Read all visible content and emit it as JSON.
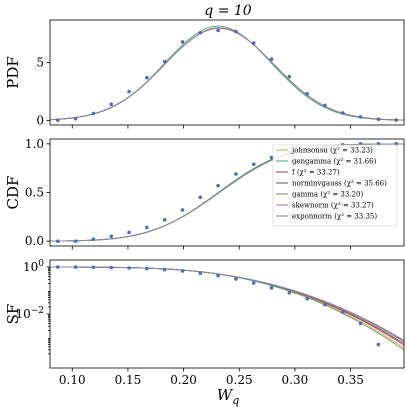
{
  "chart_data": {
    "type": "line",
    "title": "q = 10",
    "xlabel": "W_q",
    "x_ticks": [
      "0.10",
      "0.15",
      "0.20",
      "0.25",
      "0.30",
      "0.35"
    ],
    "x_tick_values": [
      0.1,
      0.15,
      0.2,
      0.25,
      0.3,
      0.35
    ],
    "xlim": [
      0.08,
      0.398
    ],
    "x": [
      0.087,
      0.103,
      0.119,
      0.135,
      0.151,
      0.167,
      0.183,
      0.199,
      0.215,
      0.231,
      0.247,
      0.263,
      0.279,
      0.295,
      0.311,
      0.327,
      0.343,
      0.359,
      0.375,
      0.391
    ],
    "panels": [
      {
        "name": "pdf",
        "ylabel": "PDF",
        "ylim": [
          -0.4,
          8.7
        ],
        "y_ticks": [
          "0",
          "5"
        ],
        "y_tick_values": [
          0,
          5
        ],
        "log": false,
        "points": [
          0.02,
          0.15,
          0.6,
          1.4,
          2.5,
          3.7,
          5.1,
          6.8,
          7.6,
          7.8,
          7.7,
          6.7,
          5.3,
          3.8,
          2.3,
          1.3,
          0.65,
          0.3,
          0.1,
          0.03
        ],
        "series": [
          {
            "name": "johnsonsu",
            "color": "#e6a34f",
            "mu": 0.232,
            "sigma": 0.049
          },
          {
            "name": "gengamma",
            "color": "#5aa86b",
            "mu": 0.231,
            "sigma": 0.048
          },
          {
            "name": "f",
            "color": "#c0405a",
            "mu": 0.232,
            "sigma": 0.049
          },
          {
            "name": "norminvgauss",
            "color": "#6a6a6a",
            "mu": 0.232,
            "sigma": 0.049
          },
          {
            "name": "gamma",
            "color": "#a9844a",
            "mu": 0.232,
            "sigma": 0.0492
          },
          {
            "name": "skewnorm",
            "color": "#c46bd1",
            "mu": 0.232,
            "sigma": 0.049
          },
          {
            "name": "exponnorm",
            "color": "#7b8ea0",
            "mu": 0.232,
            "sigma": 0.0488
          }
        ]
      },
      {
        "name": "cdf",
        "ylabel": "CDF",
        "ylim": [
          -0.05,
          1.05
        ],
        "y_ticks": [
          "0.0",
          "0.5",
          "1.0"
        ],
        "y_tick_values": [
          0.0,
          0.5,
          1.0
        ],
        "log": false,
        "points": [
          0.0,
          0.0,
          0.02,
          0.05,
          0.09,
          0.14,
          0.22,
          0.32,
          0.45,
          0.57,
          0.69,
          0.79,
          0.86,
          0.91,
          0.95,
          0.97,
          0.99,
          1.0,
          1.0,
          1.0
        ],
        "legend": [
          {
            "label": "johnsonsu (χ² = 33.23)",
            "color": "#e6a34f"
          },
          {
            "label": "gengamma (χ² = 31.66)",
            "color": "#5aa86b"
          },
          {
            "label": "f (χ² = 33.27)",
            "color": "#c0405a"
          },
          {
            "label": "norminvgauss (χ² = 35.66)",
            "color": "#6a6a6a"
          },
          {
            "label": "gamma (χ² = 33.20)",
            "color": "#a9844a"
          },
          {
            "label": "skewnorm (χ² = 33.27)",
            "color": "#c46bd1"
          },
          {
            "label": "exponnorm (χ² = 33.35)",
            "color": "#7b8ea0"
          }
        ]
      },
      {
        "name": "sf",
        "ylabel": "SF",
        "ylim_log10": [
          -4.3,
          0.3
        ],
        "y_ticks": [
          "10^0",
          "10^-2"
        ],
        "y_tick_values": [
          1,
          0.01
        ],
        "log": true,
        "points": [
          1.0,
          1.0,
          0.98,
          0.95,
          0.91,
          0.86,
          0.78,
          0.68,
          0.55,
          0.43,
          0.31,
          0.21,
          0.13,
          0.08,
          0.045,
          0.025,
          0.012,
          0.004,
          0.0005,
          null
        ]
      }
    ],
    "grid": false,
    "legend_position": "right"
  }
}
